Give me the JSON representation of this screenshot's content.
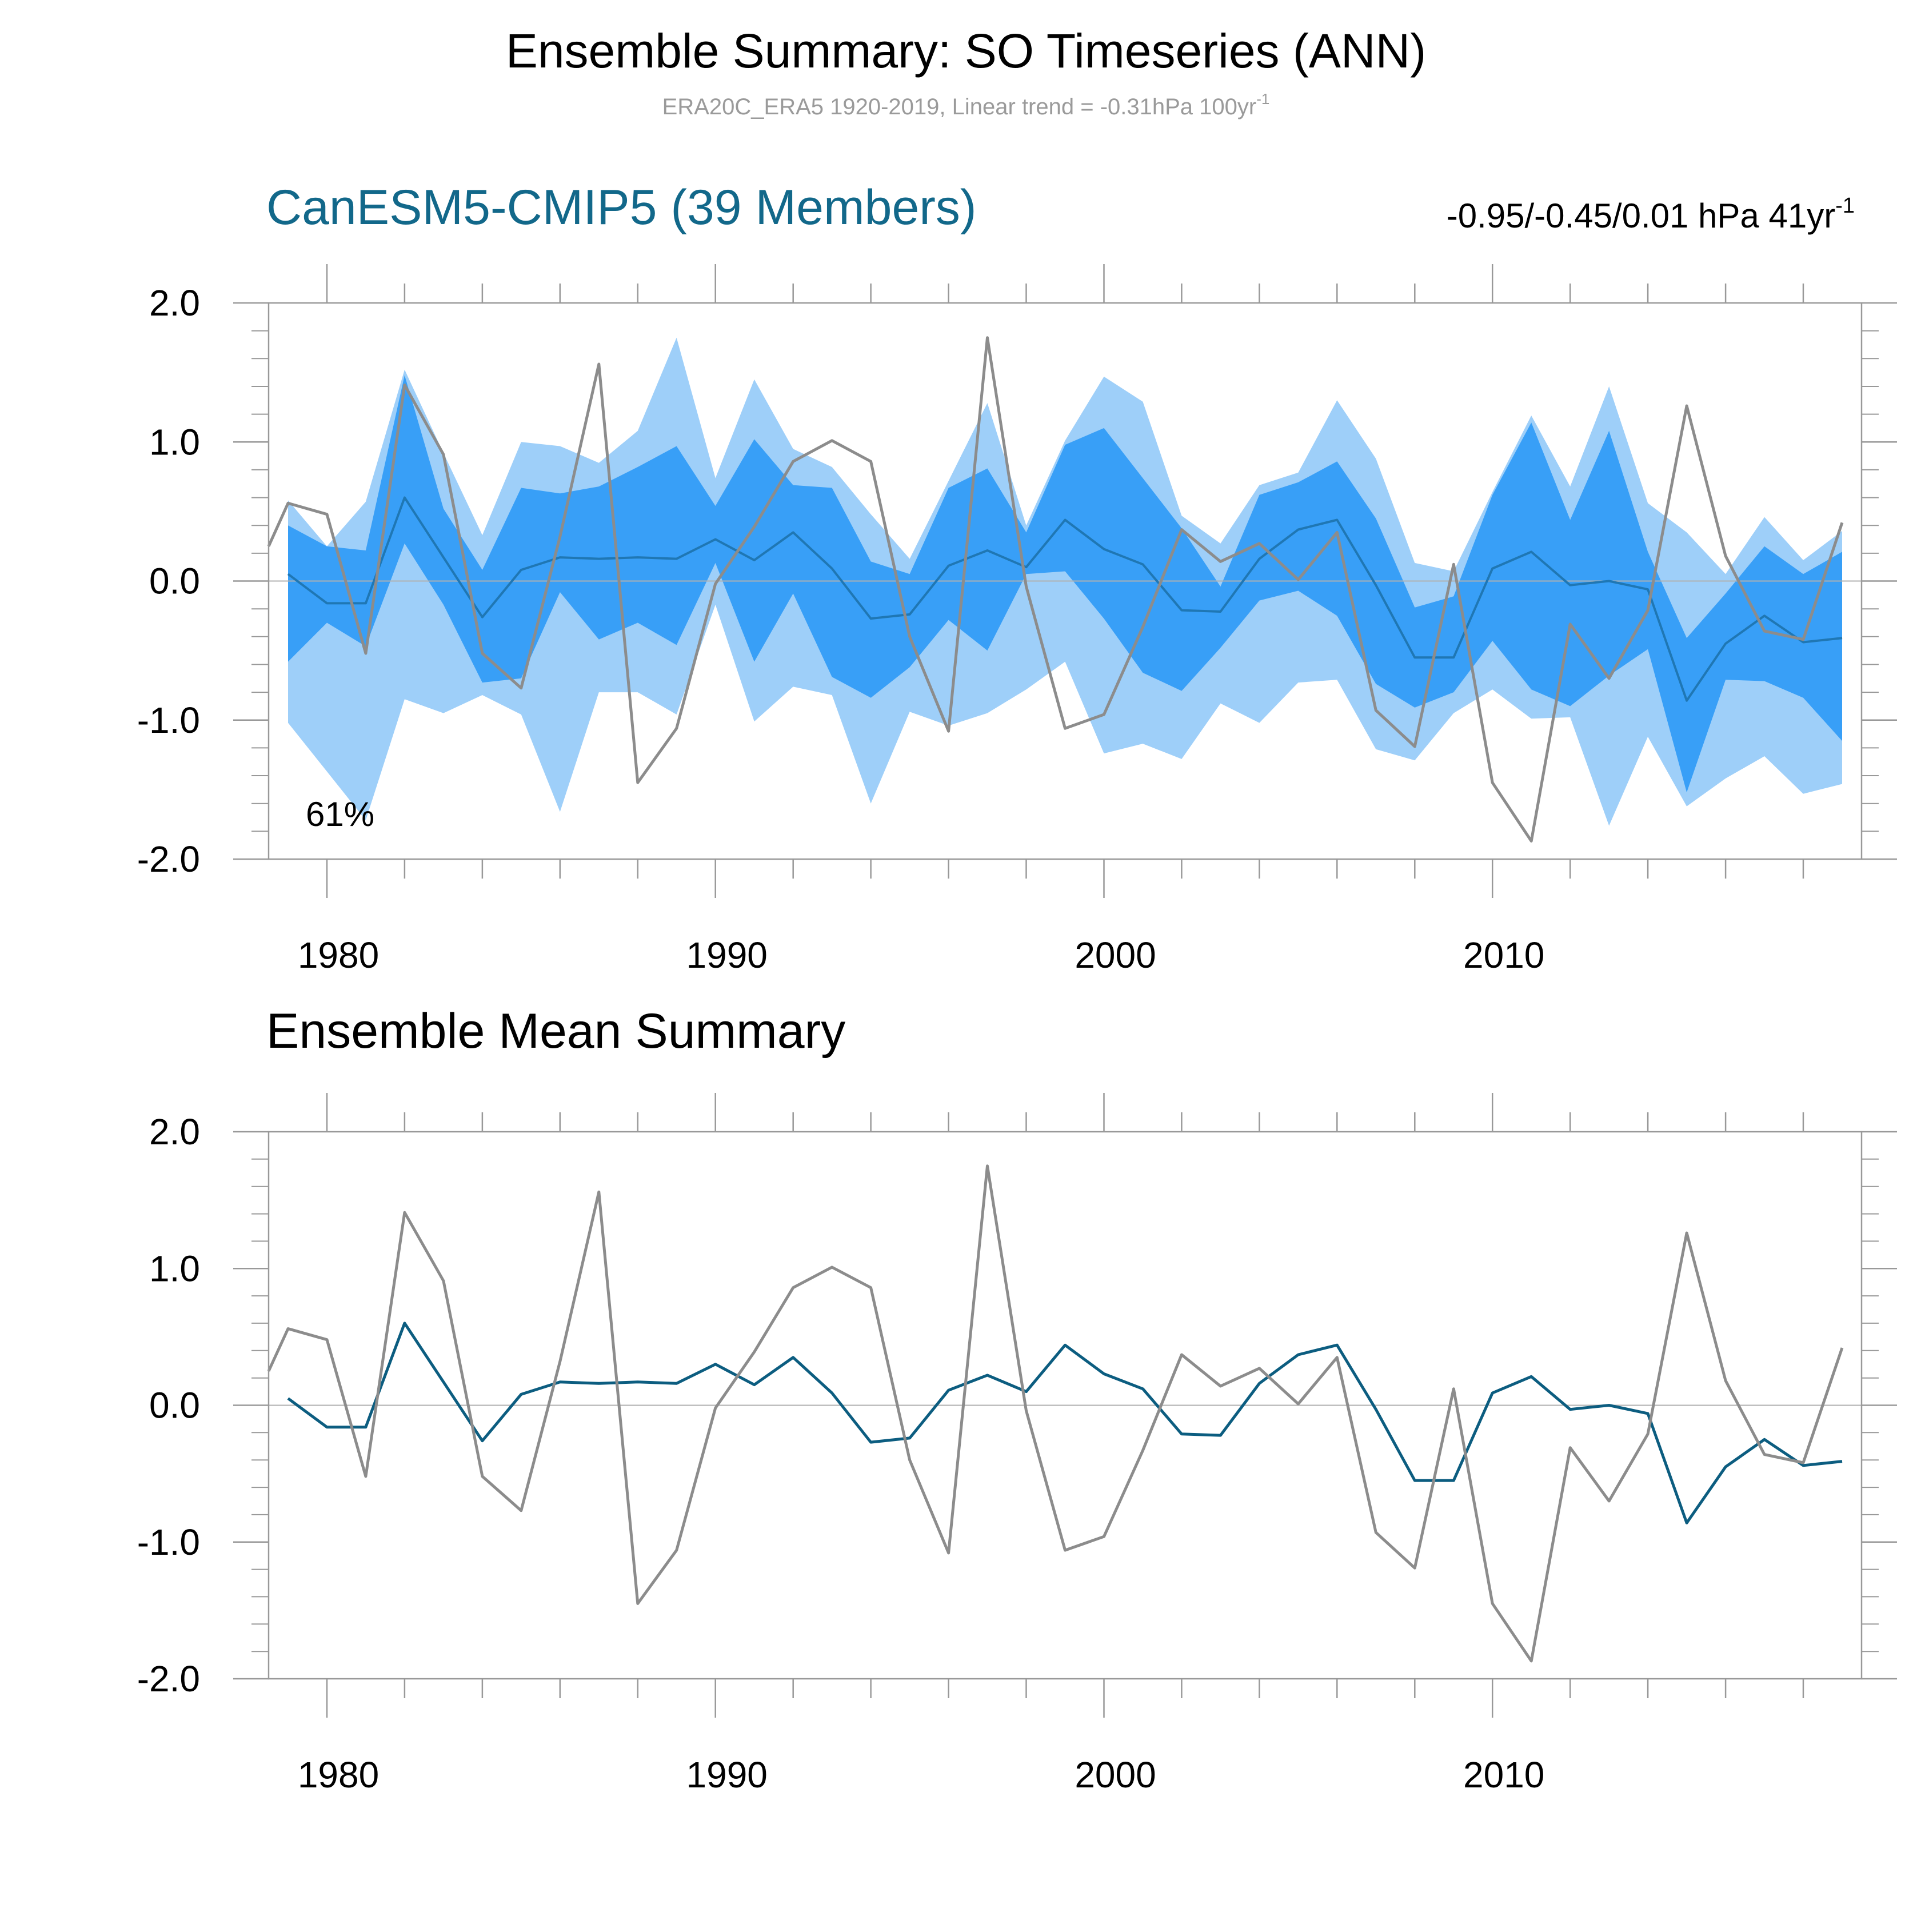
{
  "figure": {
    "title": "Ensemble Summary: SO Timeseries (ANN)",
    "subtitle_main": "ERA20C_ERA5 1920-2019, Linear trend = -0.31hPa 100yr",
    "subtitle_sup": "-1"
  },
  "colors": {
    "band_outer": "#9ecff9",
    "band_inner": "#389ff7",
    "ensemble_mean": "#1f77b4",
    "ensemble_mean_bottom": "#0c5d80",
    "observed": "#8c8c8c",
    "panel_title": "#12688a",
    "axis": "#999999"
  },
  "chart_data": [
    {
      "type": "area",
      "panel": "top",
      "title": "CanESM5-CMIP5 (39 Members)",
      "trend_label_main": "-0.95/-0.45/0.01 hPa 41yr",
      "trend_label_sup": "-1",
      "percent_label": "61%",
      "xlim": [
        1978.5,
        2019.5
      ],
      "ylim": [
        -2.0,
        2.0
      ],
      "x_ticks": [
        1980,
        1990,
        2000,
        2010
      ],
      "x_tick_labels": [
        "1980",
        "1990",
        "2000",
        "2010"
      ],
      "y_ticks": [
        -2.0,
        -1.0,
        0.0,
        1.0,
        2.0
      ],
      "y_tick_labels": [
        "-2.0",
        "-1.0",
        "0.0",
        "1.0",
        "2.0"
      ],
      "zero_line": true,
      "grid": false,
      "x": [
        1979,
        1980,
        1981,
        1982,
        1983,
        1984,
        1985,
        1986,
        1987,
        1988,
        1989,
        1990,
        1991,
        1992,
        1993,
        1994,
        1995,
        1996,
        1997,
        1998,
        1999,
        2000,
        2001,
        2002,
        2003,
        2004,
        2005,
        2006,
        2007,
        2008,
        2009,
        2010,
        2011,
        2012,
        2013,
        2014,
        2015,
        2016,
        2017,
        2018,
        2019
      ],
      "band_outer_upper": [
        0.58,
        0.25,
        0.57,
        1.52,
        0.92,
        0.33,
        1.0,
        0.97,
        0.85,
        1.08,
        1.75,
        0.74,
        1.45,
        0.95,
        0.82,
        0.48,
        0.16,
        0.72,
        1.28,
        0.4,
        1.01,
        1.47,
        1.29,
        0.47,
        0.27,
        0.69,
        0.78,
        1.3,
        0.88,
        0.13,
        0.07,
        0.64,
        1.19,
        0.68,
        1.4,
        0.56,
        0.35,
        0.05,
        0.46,
        0.15,
        0.36
      ],
      "band_inner_upper": [
        0.4,
        0.25,
        0.22,
        1.48,
        0.52,
        0.08,
        0.67,
        0.63,
        0.68,
        0.82,
        0.97,
        0.54,
        1.02,
        0.69,
        0.67,
        0.14,
        0.05,
        0.67,
        0.81,
        0.35,
        0.98,
        1.1,
        0.74,
        0.38,
        -0.04,
        0.62,
        0.71,
        0.86,
        0.45,
        -0.19,
        -0.11,
        0.62,
        1.14,
        0.44,
        1.08,
        0.21,
        -0.41,
        -0.09,
        0.25,
        0.05,
        0.21
      ],
      "band_inner_lower": [
        -0.58,
        -0.3,
        -0.47,
        0.27,
        -0.17,
        -0.73,
        -0.7,
        -0.08,
        -0.42,
        -0.3,
        -0.46,
        0.13,
        -0.58,
        -0.09,
        -0.69,
        -0.84,
        -0.62,
        -0.28,
        -0.5,
        0.05,
        0.07,
        -0.27,
        -0.66,
        -0.79,
        -0.48,
        -0.14,
        -0.07,
        -0.25,
        -0.74,
        -0.91,
        -0.8,
        -0.43,
        -0.78,
        -0.9,
        -0.68,
        -0.49,
        -1.52,
        -0.71,
        -0.72,
        -0.84,
        -1.15
      ],
      "band_outer_lower": [
        -1.02,
        -1.37,
        -1.72,
        -0.85,
        -0.95,
        -0.82,
        -0.96,
        -1.66,
        -0.8,
        -0.8,
        -0.96,
        -0.17,
        -1.01,
        -0.76,
        -0.82,
        -1.6,
        -0.94,
        -1.04,
        -0.95,
        -0.78,
        -0.58,
        -1.24,
        -1.17,
        -1.28,
        -0.88,
        -1.02,
        -0.73,
        -0.71,
        -1.21,
        -1.29,
        -0.95,
        -0.78,
        -0.99,
        -0.98,
        -1.76,
        -1.12,
        -1.62,
        -1.42,
        -1.26,
        -1.53,
        -1.46
      ],
      "series": [
        {
          "role": "ensemble-mean",
          "values": [
            0.05,
            -0.16,
            -0.16,
            0.6,
            0.17,
            -0.26,
            0.08,
            0.17,
            0.16,
            0.17,
            0.16,
            0.3,
            0.15,
            0.35,
            0.09,
            -0.27,
            -0.24,
            0.11,
            0.22,
            0.1,
            0.44,
            0.23,
            0.12,
            -0.21,
            -0.22,
            0.16,
            0.37,
            0.44,
            -0.03,
            -0.55,
            -0.55,
            0.09,
            0.21,
            -0.03,
            0.0,
            -0.06,
            -0.86,
            -0.45,
            -0.25,
            -0.44,
            -0.41
          ]
        },
        {
          "role": "observed",
          "x": [
            1978.5,
            1979,
            1980,
            1981,
            1982,
            1983,
            1984,
            1985,
            1986,
            1987,
            1988,
            1989,
            1990,
            1991,
            1992,
            1993,
            1994,
            1995,
            1996,
            1997,
            1998,
            1999,
            2000,
            2001,
            2002,
            2003,
            2004,
            2005,
            2006,
            2007,
            2008,
            2009,
            2010,
            2011,
            2012,
            2013,
            2014,
            2015,
            2016,
            2017,
            2018,
            2019
          ],
          "values": [
            0.25,
            0.56,
            0.48,
            -0.52,
            1.41,
            0.91,
            -0.52,
            -0.77,
            0.32,
            1.56,
            -1.45,
            -1.06,
            -0.02,
            0.39,
            0.86,
            1.01,
            0.86,
            -0.4,
            -1.08,
            1.75,
            -0.04,
            -1.06,
            -0.96,
            -0.33,
            0.37,
            0.14,
            0.27,
            0.01,
            0.35,
            -0.93,
            -1.19,
            0.12,
            -1.45,
            -1.87,
            -0.31,
            -0.7,
            -0.21,
            1.26,
            0.18,
            -0.36,
            -0.42,
            0.42
          ]
        }
      ]
    },
    {
      "type": "line",
      "panel": "bottom",
      "title": "Ensemble Mean Summary",
      "xlim": [
        1978.5,
        2019.5
      ],
      "ylim": [
        -2.0,
        2.0
      ],
      "x_ticks": [
        1980,
        1990,
        2000,
        2010
      ],
      "x_tick_labels": [
        "1980",
        "1990",
        "2000",
        "2010"
      ],
      "y_ticks": [
        -2.0,
        -1.0,
        0.0,
        1.0,
        2.0
      ],
      "y_tick_labels": [
        "-2.0",
        "-1.0",
        "0.0",
        "1.0",
        "2.0"
      ],
      "zero_line": true,
      "grid": false,
      "x": [
        1979,
        1980,
        1981,
        1982,
        1983,
        1984,
        1985,
        1986,
        1987,
        1988,
        1989,
        1990,
        1991,
        1992,
        1993,
        1994,
        1995,
        1996,
        1997,
        1998,
        1999,
        2000,
        2001,
        2002,
        2003,
        2004,
        2005,
        2006,
        2007,
        2008,
        2009,
        2010,
        2011,
        2012,
        2013,
        2014,
        2015,
        2016,
        2017,
        2018,
        2019
      ],
      "series": [
        {
          "role": "ensemble-mean",
          "values": [
            0.05,
            -0.16,
            -0.16,
            0.6,
            0.17,
            -0.26,
            0.08,
            0.17,
            0.16,
            0.17,
            0.16,
            0.3,
            0.15,
            0.35,
            0.09,
            -0.27,
            -0.24,
            0.11,
            0.22,
            0.1,
            0.44,
            0.23,
            0.12,
            -0.21,
            -0.22,
            0.16,
            0.37,
            0.44,
            -0.03,
            -0.55,
            -0.55,
            0.09,
            0.21,
            -0.03,
            0.0,
            -0.06,
            -0.86,
            -0.45,
            -0.25,
            -0.44,
            -0.41
          ]
        },
        {
          "role": "observed",
          "x": [
            1978.5,
            1979,
            1980,
            1981,
            1982,
            1983,
            1984,
            1985,
            1986,
            1987,
            1988,
            1989,
            1990,
            1991,
            1992,
            1993,
            1994,
            1995,
            1996,
            1997,
            1998,
            1999,
            2000,
            2001,
            2002,
            2003,
            2004,
            2005,
            2006,
            2007,
            2008,
            2009,
            2010,
            2011,
            2012,
            2013,
            2014,
            2015,
            2016,
            2017,
            2018,
            2019
          ],
          "values": [
            0.25,
            0.56,
            0.48,
            -0.52,
            1.41,
            0.91,
            -0.52,
            -0.77,
            0.32,
            1.56,
            -1.45,
            -1.06,
            -0.02,
            0.39,
            0.86,
            1.01,
            0.86,
            -0.4,
            -1.08,
            1.75,
            -0.04,
            -1.06,
            -0.96,
            -0.33,
            0.37,
            0.14,
            0.27,
            0.01,
            0.35,
            -0.93,
            -1.19,
            0.12,
            -1.45,
            -1.87,
            -0.31,
            -0.7,
            -0.21,
            1.26,
            0.18,
            -0.36,
            -0.42,
            0.42
          ]
        }
      ]
    }
  ]
}
